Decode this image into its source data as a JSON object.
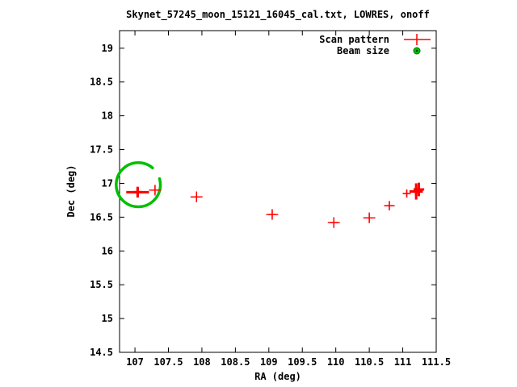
{
  "title": "Skynet_57245_moon_15121_16045_cal.txt, LOWRES, onoff",
  "colors": {
    "scan": "#ff0000",
    "beam": "#00c000",
    "beam_edge": "#007000",
    "axis": "#000000"
  },
  "chart_data": {
    "type": "scatter",
    "title": "Skynet_57245_moon_15121_16045_cal.txt, LOWRES, onoff",
    "xlabel": "RA (deg)",
    "ylabel": "Dec (deg)",
    "xlim": [
      106.77,
      111.5
    ],
    "ylim": [
      14.5,
      19.26
    ],
    "grid": false,
    "legend_position": "top-right-inside",
    "xtick_values": [
      107,
      107.5,
      108,
      108.5,
      109,
      109.5,
      110,
      110.5,
      111,
      111.5
    ],
    "xtick_labels": [
      "107",
      "107.5",
      "108",
      "108.5",
      "109",
      "109.5",
      "110",
      "110.5",
      "111",
      "111.5"
    ],
    "ytick_values": [
      14.5,
      15,
      15.5,
      16,
      16.5,
      17,
      17.5,
      18,
      18.5,
      19
    ],
    "ytick_labels": [
      "14.5",
      "15",
      "15.5",
      "16",
      "16.5",
      "17",
      "17.5",
      "18",
      "18.5",
      "19"
    ],
    "legend": [
      {
        "label": "Scan pattern",
        "marker": "plus",
        "color": "#ff0000"
      },
      {
        "label": "Beam size",
        "marker": "circle",
        "color": "#00c000"
      }
    ],
    "series": [
      {
        "name": "Scan pattern",
        "marker": "plus-errorbar",
        "color": "#ff0000",
        "points": [
          {
            "x": 107.04,
            "y": 16.87,
            "xerr": 0.17,
            "yerr": 0.08,
            "bold": true
          },
          {
            "x": 107.3,
            "y": 16.9,
            "xerr": 0.09,
            "yerr": 0.08,
            "bold": false
          },
          {
            "x": 107.92,
            "y": 16.8,
            "xerr": 0.09,
            "yerr": 0.08,
            "bold": false
          },
          {
            "x": 109.05,
            "y": 16.54,
            "xerr": 0.09,
            "yerr": 0.08,
            "bold": false
          },
          {
            "x": 109.97,
            "y": 16.42,
            "xerr": 0.09,
            "yerr": 0.08,
            "bold": false
          },
          {
            "x": 110.5,
            "y": 16.49,
            "xerr": 0.09,
            "yerr": 0.08,
            "bold": false
          },
          {
            "x": 110.8,
            "y": 16.67,
            "xerr": 0.08,
            "yerr": 0.07,
            "bold": false
          },
          {
            "x": 111.06,
            "y": 16.85,
            "xerr": 0.06,
            "yerr": 0.06,
            "bold": false
          },
          {
            "x": 111.2,
            "y": 16.88,
            "xerr": 0.1,
            "yerr": 0.12,
            "bold": true
          },
          {
            "x": 111.24,
            "y": 16.91,
            "xerr": 0.08,
            "yerr": 0.1,
            "bold": true
          }
        ]
      }
    ],
    "beam": {
      "x": 107.05,
      "y": 16.98,
      "r": 0.33
    }
  }
}
